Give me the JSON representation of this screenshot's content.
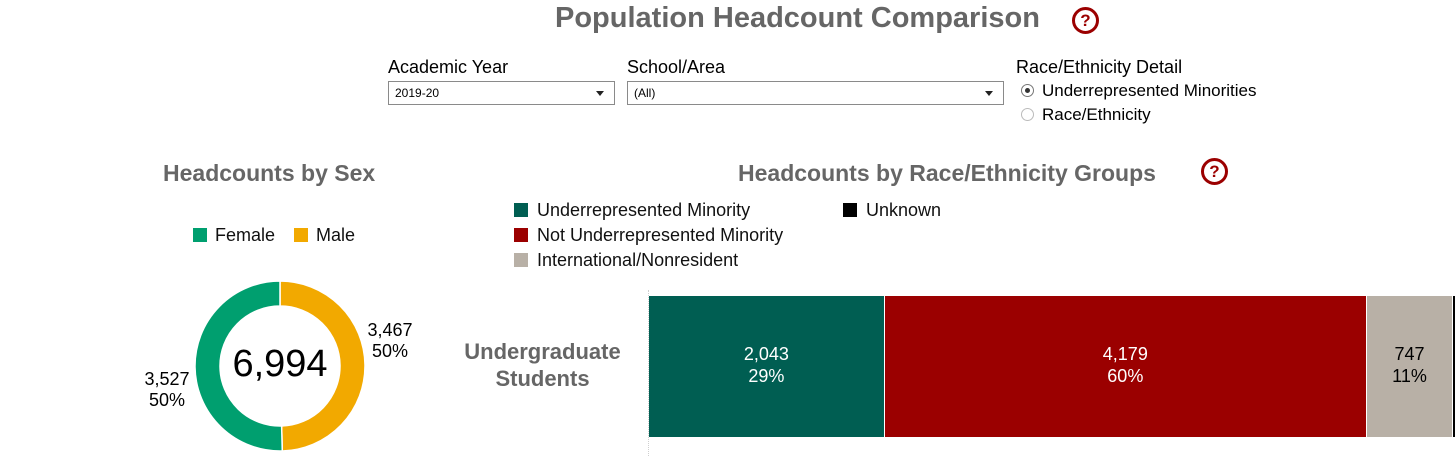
{
  "header": {
    "title": "Population Headcount Comparison",
    "help_glyph": "?"
  },
  "filters": {
    "academic_year": {
      "label": "Academic Year",
      "value": "2019-20"
    },
    "school_area": {
      "label": "School/Area",
      "value": "(All)"
    },
    "race_detail": {
      "label": "Race/Ethnicity Detail",
      "options": [
        "Underrepresented Minorities",
        "Race/Ethnicity"
      ],
      "selected": "Underrepresented Minorities"
    }
  },
  "colors": {
    "title_gray": "#666666",
    "help_red": "#9b0000",
    "female": "#009f6f",
    "male": "#f2a900",
    "urm": "#005e52",
    "not_urm": "#9b0000",
    "international": "#b8b0a6",
    "unknown": "#000000"
  },
  "chart_data": [
    {
      "type": "pie",
      "title": "Headcounts by Sex",
      "center_label": "6,994",
      "legend": [
        "Female",
        "Male"
      ],
      "legend_placement": "top",
      "slices": [
        {
          "name": "Female",
          "value": 3527,
          "label": "3,527",
          "percent": "50%"
        },
        {
          "name": "Male",
          "value": 3467,
          "label": "3,467",
          "percent": "50%"
        }
      ]
    },
    {
      "type": "bar",
      "orientation": "horizontal-stacked",
      "title": "Headcounts by Race/Ethnicity Groups",
      "categories": [
        "Undergraduate Students"
      ],
      "legend": [
        "Underrepresented Minority",
        "Not Underrepresented Minority",
        "International/Nonresident",
        "Unknown"
      ],
      "legend_placement": "top",
      "series": [
        {
          "name": "Underrepresented Minority",
          "values": [
            2043
          ],
          "label": "2,043",
          "percent": "29%"
        },
        {
          "name": "Not Underrepresented Minority",
          "values": [
            4179
          ],
          "label": "4,179",
          "percent": "60%"
        },
        {
          "name": "International/Nonresident",
          "values": [
            747
          ],
          "label": "747",
          "percent": "11%"
        },
        {
          "name": "Unknown",
          "values": [
            25
          ],
          "label": "",
          "percent": ""
        }
      ]
    }
  ]
}
